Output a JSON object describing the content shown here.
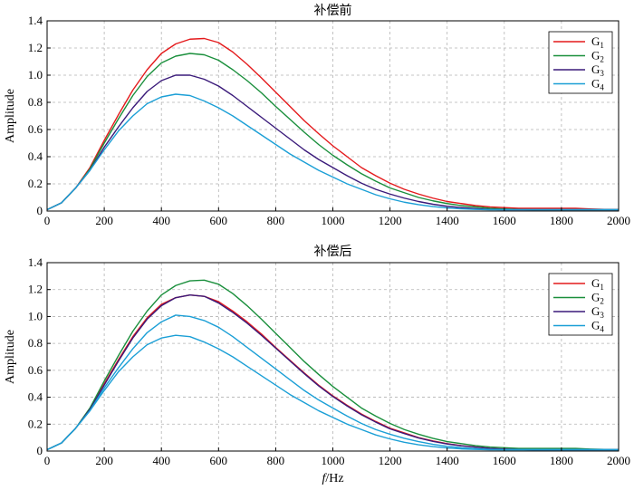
{
  "chart_data": [
    {
      "type": "line",
      "title": "补偿前",
      "xlabel": "",
      "ylabel": "Amplitude",
      "xlim": [
        0,
        2000
      ],
      "ylim": [
        0,
        1.4
      ],
      "xticks": [
        0,
        200,
        400,
        600,
        800,
        1000,
        1200,
        1400,
        1600,
        1800,
        2000
      ],
      "yticks": [
        0,
        0.2,
        0.4,
        0.6,
        0.8,
        1.0,
        1.2,
        1.4
      ],
      "ytick_labels": [
        "0",
        "0.2",
        "0.4",
        "0.6",
        "0.8",
        "1.0",
        "1.2",
        "1.4"
      ],
      "grid": true,
      "legend_position": "top-right",
      "x": [
        0,
        50,
        100,
        150,
        200,
        250,
        300,
        350,
        400,
        450,
        500,
        550,
        600,
        650,
        700,
        750,
        800,
        850,
        900,
        950,
        1000,
        1050,
        1100,
        1150,
        1200,
        1250,
        1300,
        1350,
        1400,
        1450,
        1500,
        1550,
        1600,
        1650,
        1700,
        1750,
        1800,
        1850,
        1900,
        1950,
        2000
      ],
      "series": [
        {
          "name": "G",
          "sub": "1",
          "color": "#e41a1c",
          "values": [
            0.01,
            0.06,
            0.17,
            0.32,
            0.52,
            0.71,
            0.89,
            1.04,
            1.16,
            1.23,
            1.265,
            1.27,
            1.24,
            1.17,
            1.08,
            0.98,
            0.875,
            0.77,
            0.665,
            0.57,
            0.48,
            0.4,
            0.32,
            0.26,
            0.205,
            0.16,
            0.125,
            0.095,
            0.07,
            0.055,
            0.04,
            0.03,
            0.025,
            0.02,
            0.02,
            0.02,
            0.02,
            0.02,
            0.015,
            0.012,
            0.01
          ]
        },
        {
          "name": "G",
          "sub": "2",
          "color": "#1a8f3c",
          "values": [
            0.01,
            0.06,
            0.17,
            0.31,
            0.5,
            0.68,
            0.85,
            0.99,
            1.09,
            1.14,
            1.16,
            1.15,
            1.11,
            1.04,
            0.96,
            0.87,
            0.77,
            0.675,
            0.58,
            0.49,
            0.41,
            0.34,
            0.275,
            0.22,
            0.17,
            0.135,
            0.1,
            0.075,
            0.055,
            0.04,
            0.03,
            0.02,
            0.015,
            0.012,
            0.01,
            0.01,
            0.01,
            0.01,
            0.01,
            0.01,
            0.01
          ]
        },
        {
          "name": "G",
          "sub": "3",
          "color": "#3a1a7a",
          "values": [
            0.01,
            0.06,
            0.17,
            0.3,
            0.47,
            0.62,
            0.76,
            0.88,
            0.96,
            1.0,
            1.0,
            0.97,
            0.92,
            0.85,
            0.77,
            0.69,
            0.61,
            0.53,
            0.45,
            0.38,
            0.32,
            0.26,
            0.205,
            0.16,
            0.125,
            0.095,
            0.07,
            0.05,
            0.035,
            0.025,
            0.018,
            0.012,
            0.01,
            0.01,
            0.01,
            0.01,
            0.01,
            0.01,
            0.01,
            0.01,
            0.01
          ]
        },
        {
          "name": "G",
          "sub": "4",
          "color": "#1b9fd6",
          "values": [
            0.01,
            0.06,
            0.17,
            0.3,
            0.45,
            0.59,
            0.7,
            0.79,
            0.84,
            0.86,
            0.85,
            0.81,
            0.76,
            0.7,
            0.63,
            0.56,
            0.49,
            0.42,
            0.36,
            0.3,
            0.25,
            0.2,
            0.16,
            0.12,
            0.09,
            0.065,
            0.047,
            0.033,
            0.023,
            0.016,
            0.012,
            0.01,
            0.01,
            0.01,
            0.01,
            0.01,
            0.01,
            0.01,
            0.01,
            0.01,
            0.01
          ]
        }
      ]
    },
    {
      "type": "line",
      "title": "补偿后",
      "xlabel": "f/Hz",
      "xlabel_italic": "f",
      "xlabel_rest": "/Hz",
      "ylabel": "Amplitude",
      "xlim": [
        0,
        2000
      ],
      "ylim": [
        0,
        1.4
      ],
      "xticks": [
        0,
        200,
        400,
        600,
        800,
        1000,
        1200,
        1400,
        1600,
        1800,
        2000
      ],
      "yticks": [
        0,
        0.2,
        0.4,
        0.6,
        0.8,
        1.0,
        1.2,
        1.4
      ],
      "ytick_labels": [
        "0",
        "0.2",
        "0.4",
        "0.6",
        "0.8",
        "1.0",
        "1.2",
        "1.4"
      ],
      "grid": true,
      "legend_position": "top-right",
      "x": [
        0,
        50,
        100,
        150,
        200,
        250,
        300,
        350,
        400,
        450,
        500,
        550,
        600,
        650,
        700,
        750,
        800,
        850,
        900,
        950,
        1000,
        1050,
        1100,
        1150,
        1200,
        1250,
        1300,
        1350,
        1400,
        1450,
        1500,
        1550,
        1600,
        1650,
        1700,
        1750,
        1800,
        1850,
        1900,
        1950,
        2000
      ],
      "series": [
        {
          "name": "G",
          "sub": "1",
          "color": "#e41a1c",
          "values": [
            0.01,
            0.06,
            0.17,
            0.31,
            0.5,
            0.68,
            0.85,
            0.99,
            1.09,
            1.14,
            1.16,
            1.15,
            1.11,
            1.04,
            0.96,
            0.87,
            0.77,
            0.675,
            0.58,
            0.49,
            0.41,
            0.34,
            0.275,
            0.22,
            0.17,
            0.135,
            0.1,
            0.075,
            0.055,
            0.04,
            0.03,
            0.02,
            0.015,
            0.012,
            0.01,
            0.01,
            0.01,
            0.01,
            0.01,
            0.01,
            0.01
          ]
        },
        {
          "name": "G",
          "sub": "2",
          "color": "#1a8f3c",
          "values": [
            0.01,
            0.06,
            0.17,
            0.32,
            0.52,
            0.71,
            0.89,
            1.04,
            1.16,
            1.23,
            1.265,
            1.27,
            1.24,
            1.17,
            1.08,
            0.98,
            0.875,
            0.77,
            0.665,
            0.57,
            0.48,
            0.4,
            0.32,
            0.26,
            0.205,
            0.16,
            0.125,
            0.095,
            0.07,
            0.055,
            0.04,
            0.03,
            0.025,
            0.02,
            0.02,
            0.02,
            0.02,
            0.02,
            0.015,
            0.012,
            0.01
          ]
        },
        {
          "name": "G",
          "sub": "3",
          "color": "#3a1a7a",
          "values": [
            0.01,
            0.06,
            0.17,
            0.31,
            0.49,
            0.67,
            0.84,
            0.98,
            1.08,
            1.14,
            1.16,
            1.15,
            1.1,
            1.03,
            0.95,
            0.86,
            0.765,
            0.67,
            0.575,
            0.485,
            0.405,
            0.335,
            0.27,
            0.215,
            0.165,
            0.13,
            0.097,
            0.072,
            0.053,
            0.039,
            0.029,
            0.02,
            0.015,
            0.012,
            0.01,
            0.01,
            0.01,
            0.01,
            0.01,
            0.01,
            0.01
          ]
        },
        {
          "name": "G",
          "sub": "4",
          "color": "#1b9fd6",
          "values": [
            0.01,
            0.06,
            0.17,
            0.3,
            0.47,
            0.62,
            0.76,
            0.88,
            0.96,
            1.01,
            1.0,
            0.97,
            0.92,
            0.85,
            0.77,
            0.69,
            0.61,
            0.53,
            0.45,
            0.38,
            0.32,
            0.26,
            0.205,
            0.16,
            0.125,
            0.095,
            0.07,
            0.05,
            0.035,
            0.025,
            0.018,
            0.012,
            0.01,
            0.01,
            0.01,
            0.01,
            0.01,
            0.01,
            0.01,
            0.01,
            0.01
          ]
        },
        {
          "name": "",
          "sub": "",
          "color": "#1b9fd6",
          "legend": false,
          "values": [
            0.01,
            0.06,
            0.17,
            0.3,
            0.45,
            0.59,
            0.7,
            0.79,
            0.84,
            0.86,
            0.85,
            0.81,
            0.76,
            0.7,
            0.63,
            0.56,
            0.49,
            0.42,
            0.36,
            0.3,
            0.25,
            0.2,
            0.16,
            0.12,
            0.09,
            0.065,
            0.047,
            0.033,
            0.023,
            0.016,
            0.012,
            0.01,
            0.01,
            0.01,
            0.01,
            0.01,
            0.01,
            0.01,
            0.01,
            0.01,
            0.01
          ]
        }
      ]
    }
  ]
}
